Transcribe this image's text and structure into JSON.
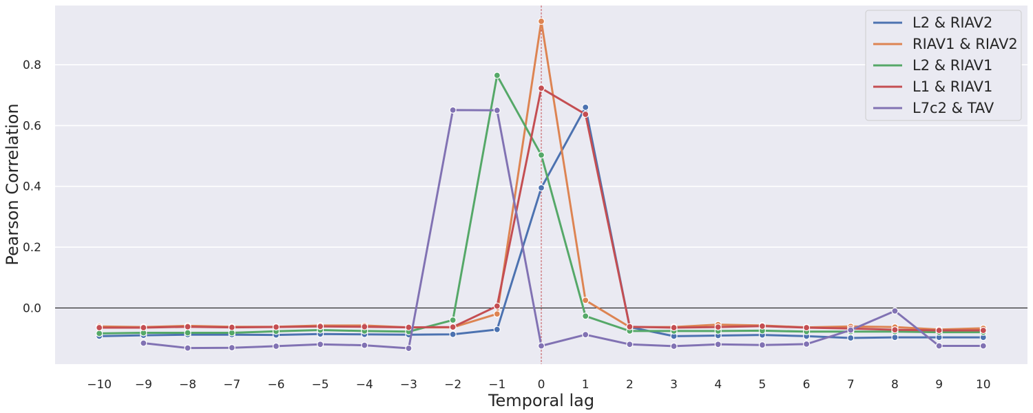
{
  "chart_data": {
    "type": "line",
    "title": "",
    "xlabel": "Temporal lag",
    "ylabel": "Pearson Correlation",
    "x": [
      -10,
      -9,
      -8,
      -7,
      -6,
      -5,
      -4,
      -3,
      -2,
      -1,
      0,
      1,
      2,
      3,
      4,
      5,
      6,
      7,
      8,
      9,
      10
    ],
    "x_tick_labels": [
      "−10",
      "−9",
      "−8",
      "−7",
      "−6",
      "−5",
      "−4",
      "−3",
      "−2",
      "−1",
      "0",
      "1",
      "2",
      "3",
      "4",
      "5",
      "6",
      "7",
      "8",
      "9",
      "10"
    ],
    "xlim": [
      -11,
      11
    ],
    "ylim": [
      -0.185,
      0.995
    ],
    "y_ticks": [
      0.0,
      0.2,
      0.4,
      0.6,
      0.8
    ],
    "y_tick_labels": [
      "0.0",
      "0.2",
      "0.4",
      "0.6",
      "0.8"
    ],
    "grid": true,
    "reference_lines": {
      "horizontal_y": 0.0,
      "vertical_x": 0
    },
    "legend_position": "top-right",
    "series": [
      {
        "name": "L2 & RIAV2",
        "color": "#4c72b0",
        "values": [
          -0.093,
          -0.09,
          -0.088,
          -0.088,
          -0.089,
          -0.086,
          -0.087,
          -0.088,
          -0.087,
          -0.071,
          0.395,
          0.66,
          -0.063,
          -0.093,
          -0.091,
          -0.089,
          -0.093,
          -0.099,
          -0.097,
          -0.097,
          -0.097
        ]
      },
      {
        "name": "RIAV1 & RIAV2",
        "color": "#dd8452",
        "values": [
          -0.061,
          -0.063,
          -0.059,
          -0.062,
          -0.062,
          -0.058,
          -0.058,
          -0.064,
          -0.064,
          -0.02,
          0.943,
          0.025,
          -0.063,
          -0.063,
          -0.055,
          -0.058,
          -0.064,
          -0.061,
          -0.063,
          -0.071,
          -0.067
        ]
      },
      {
        "name": "L2 & RIAV1",
        "color": "#55a868",
        "values": [
          -0.084,
          -0.082,
          -0.082,
          -0.082,
          -0.077,
          -0.073,
          -0.076,
          -0.078,
          -0.04,
          0.765,
          0.503,
          -0.027,
          -0.076,
          -0.076,
          -0.076,
          -0.075,
          -0.078,
          -0.078,
          -0.078,
          -0.08,
          -0.08
        ]
      },
      {
        "name": "L1 & RIAV1",
        "color": "#c44e52",
        "values": [
          -0.065,
          -0.065,
          -0.062,
          -0.064,
          -0.063,
          -0.061,
          -0.062,
          -0.064,
          -0.063,
          0.006,
          0.723,
          0.637,
          -0.062,
          -0.065,
          -0.063,
          -0.06,
          -0.065,
          -0.068,
          -0.072,
          -0.074,
          -0.074
        ]
      },
      {
        "name": "L7c2 & TAV",
        "color": "#8172b3",
        "values": [
          null,
          -0.116,
          -0.132,
          -0.131,
          -0.126,
          -0.12,
          -0.123,
          -0.133,
          0.651,
          0.65,
          -0.125,
          -0.088,
          -0.12,
          -0.126,
          -0.12,
          -0.122,
          -0.119,
          -0.073,
          -0.01,
          -0.125,
          -0.125
        ]
      }
    ]
  }
}
